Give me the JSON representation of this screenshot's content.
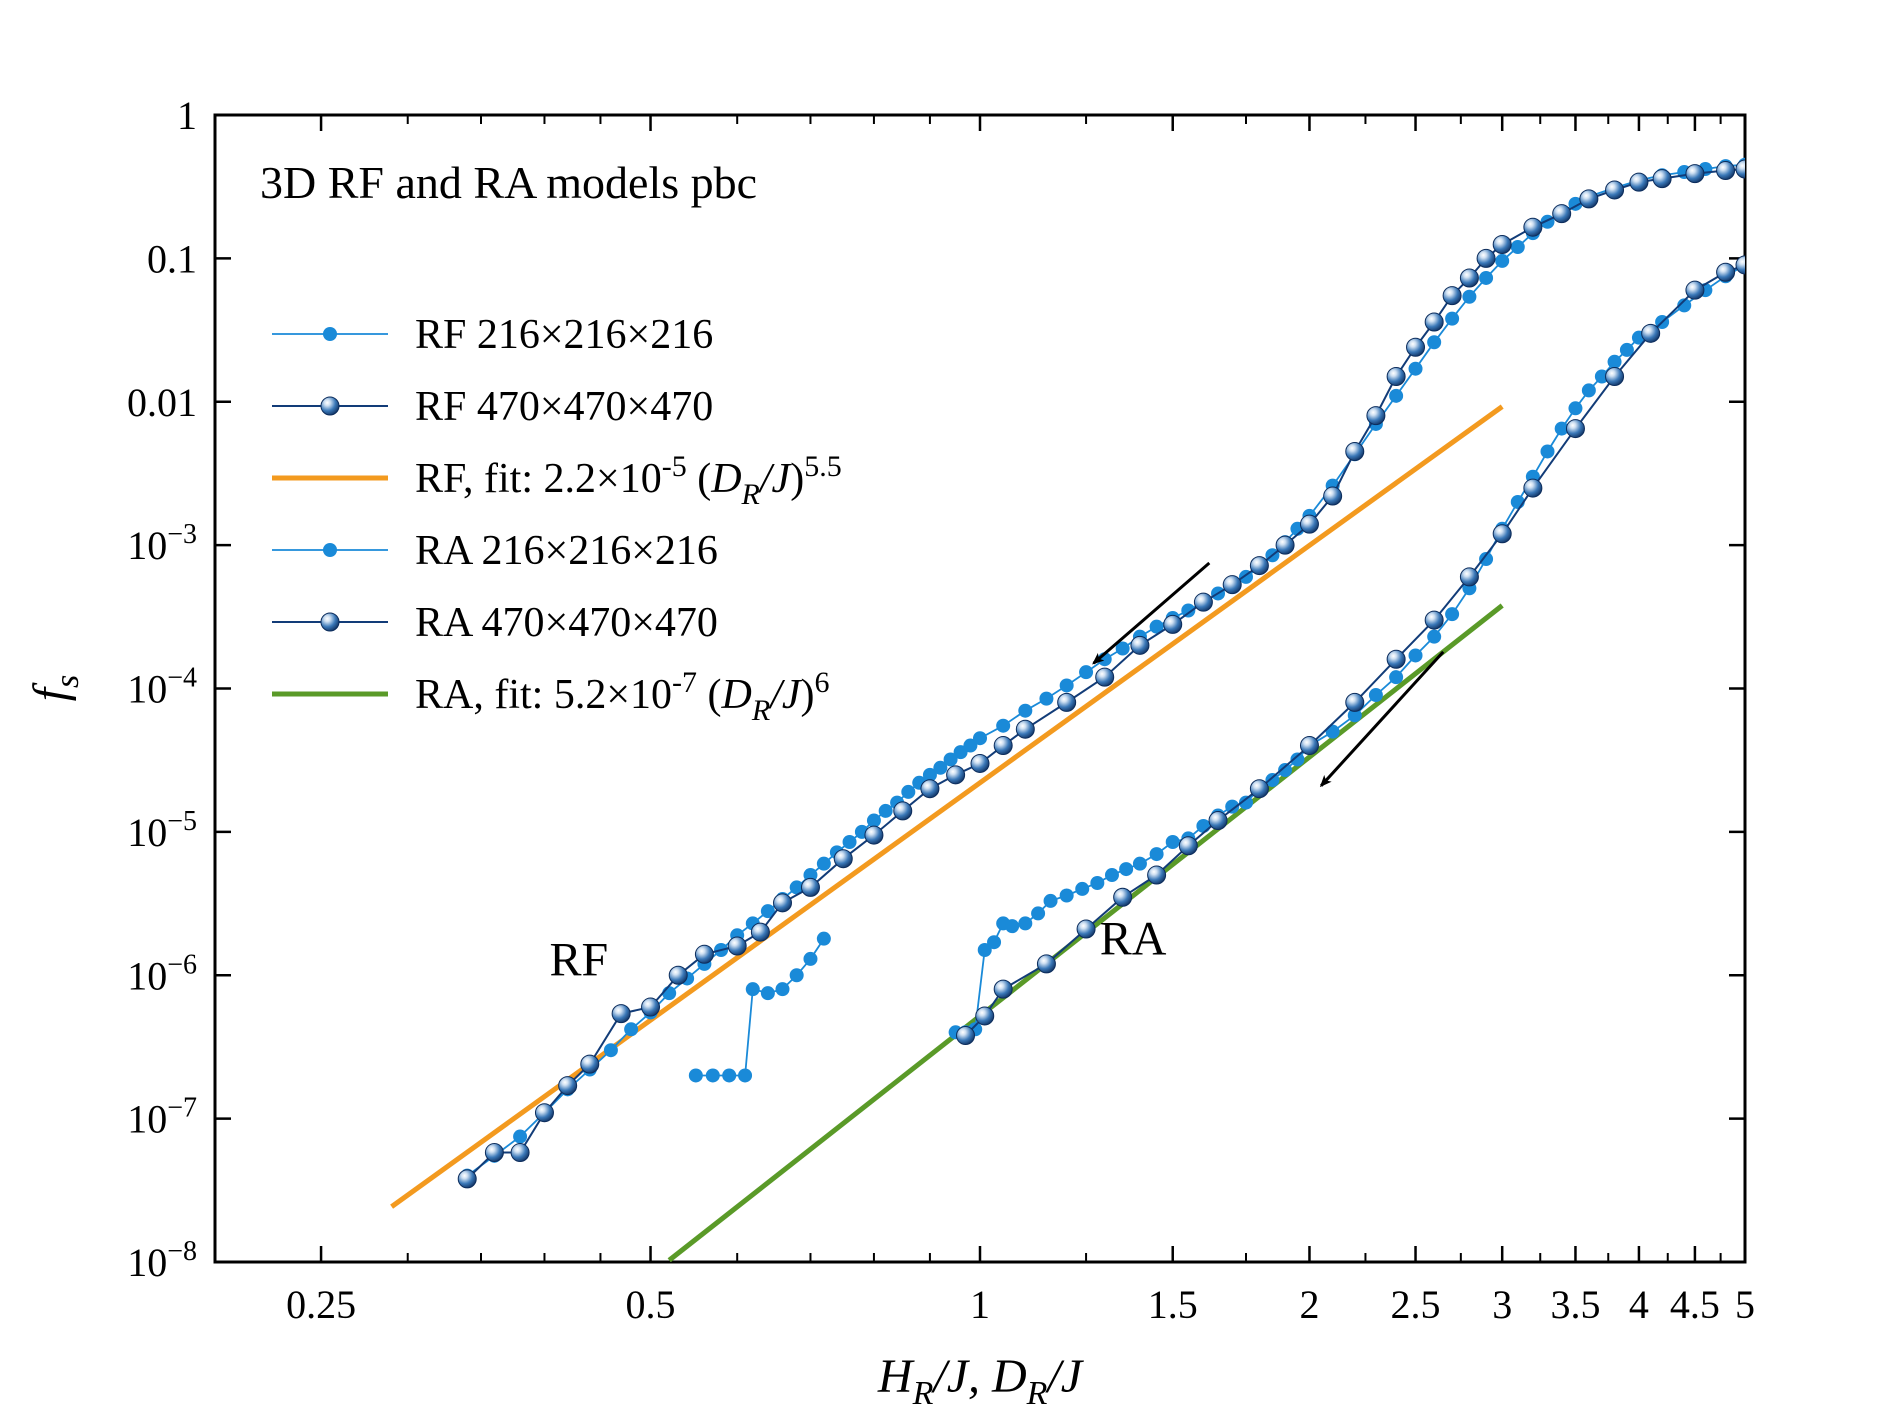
{
  "chart_data": {
    "type": "scatter",
    "title": "3D RF and RA models  pbc",
    "xscale": "log",
    "yscale": "log",
    "xlim": [
      0.2,
      5
    ],
    "ylim": [
      1e-08,
      1
    ],
    "xlabel": {
      "base1": "H",
      "sub1": "R",
      "mid": "/J, ",
      "base2": "D",
      "sub2": "R",
      "end": "/J"
    },
    "ylabel": {
      "base": "f",
      "sub": "s"
    },
    "x_ticks": [
      {
        "value": 0.25,
        "label": "0.25"
      },
      {
        "value": 0.5,
        "label": "0.5"
      },
      {
        "value": 1,
        "label": "1"
      },
      {
        "value": 1.5,
        "label": "1.5"
      },
      {
        "value": 2,
        "label": "2"
      },
      {
        "value": 2.5,
        "label": "2.5"
      },
      {
        "value": 3,
        "label": "3"
      },
      {
        "value": 3.5,
        "label": "3.5"
      },
      {
        "value": 4,
        "label": "4"
      },
      {
        "value": 4.5,
        "label": "4.5"
      },
      {
        "value": 5,
        "label": "5"
      }
    ],
    "y_ticks": [
      {
        "value": 1,
        "base": "1",
        "exp": ""
      },
      {
        "value": 0.1,
        "base": "0.1",
        "exp": ""
      },
      {
        "value": 0.01,
        "base": "0.01",
        "exp": ""
      },
      {
        "value": 0.001,
        "base": "10",
        "exp": "−3"
      },
      {
        "value": 0.0001,
        "base": "10",
        "exp": "−4"
      },
      {
        "value": 1e-05,
        "base": "10",
        "exp": "−5"
      },
      {
        "value": 1e-06,
        "base": "10",
        "exp": "−6"
      },
      {
        "value": 1e-07,
        "base": "10",
        "exp": "−7"
      },
      {
        "value": 1e-08,
        "base": "10",
        "exp": "−8"
      }
    ],
    "legend_position": "upper-left",
    "legend": [
      {
        "key": "rf216",
        "style": "small-dot",
        "color": "#1a8ad8",
        "parts": [
          {
            "t": "RF 216×216×216"
          }
        ]
      },
      {
        "key": "rf470",
        "style": "sphere",
        "color": "#1a5fb0",
        "parts": [
          {
            "t": "RF 470×470×470"
          }
        ]
      },
      {
        "key": "rffit",
        "style": "line",
        "color": "#f39a1f",
        "parts": [
          {
            "t": "RF, fit: 2.2×10"
          },
          {
            "t": "-5",
            "s": "sup"
          },
          {
            "t": " ("
          },
          {
            "t": "D",
            "s": "it"
          },
          {
            "t": "R",
            "s": "itsub"
          },
          {
            "t": "/J",
            "s": "it"
          },
          {
            "t": ")"
          },
          {
            "t": "5.5",
            "s": "sup"
          }
        ]
      },
      {
        "key": "ra216",
        "style": "small-dot",
        "color": "#1a8ad8",
        "parts": [
          {
            "t": "RA 216×216×216"
          }
        ]
      },
      {
        "key": "ra470",
        "style": "sphere",
        "color": "#1a5fb0",
        "parts": [
          {
            "t": "RA 470×470×470"
          }
        ]
      },
      {
        "key": "rafit",
        "style": "line",
        "color": "#5a9a28",
        "parts": [
          {
            "t": "RA, fit: 5.2×10"
          },
          {
            "t": "-7",
            "s": "sup"
          },
          {
            "t": " ("
          },
          {
            "t": "D",
            "s": "it"
          },
          {
            "t": "R",
            "s": "itsub"
          },
          {
            "t": "/J",
            "s": "it"
          },
          {
            "t": ")"
          },
          {
            "t": "6",
            "s": "sup"
          }
        ]
      }
    ],
    "annotations": [
      {
        "text": "RF",
        "x": 0.43,
        "y": 1e-06
      },
      {
        "text": "RA",
        "x": 1.38,
        "y": 1.4e-06
      }
    ],
    "arrows": [
      {
        "from": [
          1.62,
          0.00075
        ],
        "to": [
          1.27,
          0.00015
        ]
      },
      {
        "from": [
          2.65,
          0.00018
        ],
        "to": [
          2.05,
          2.1e-05
        ]
      }
    ],
    "fits": [
      {
        "name": "RF fit",
        "prefactor": 2.2e-05,
        "exponent": 5.5,
        "x_range": [
          0.29,
          3.0
        ],
        "color": "#f39a1f"
      },
      {
        "name": "RA fit",
        "prefactor": 5.2e-07,
        "exponent": 6,
        "x_range": [
          0.52,
          3.0
        ],
        "color": "#5a9a28"
      }
    ],
    "series": [
      {
        "name": "RF 216×216×216",
        "style": "small-dot",
        "color": "#1a8ad8",
        "x": [
          0.34,
          0.36,
          0.38,
          0.4,
          0.42,
          0.44,
          0.46,
          0.48,
          0.5,
          0.52,
          0.54,
          0.56,
          0.58,
          0.6,
          0.62,
          0.64,
          0.66,
          0.68,
          0.7,
          0.72,
          0.74,
          0.76,
          0.78,
          0.8,
          0.82,
          0.84,
          0.86,
          0.88,
          0.9,
          0.92,
          0.94,
          0.96,
          0.98,
          1.0,
          1.05,
          1.1,
          1.15,
          1.2,
          1.25,
          1.3,
          1.35,
          1.4,
          1.45,
          1.5,
          1.55,
          1.6,
          1.65,
          1.7,
          1.75,
          1.8,
          1.85,
          1.9,
          1.95,
          2.0,
          2.1,
          2.2,
          2.3,
          2.4,
          2.5,
          2.6,
          2.7,
          2.8,
          2.9,
          3.0,
          3.1,
          3.2,
          3.3,
          3.4,
          3.5,
          3.6,
          3.8,
          4.0,
          4.2,
          4.4,
          4.6,
          4.8,
          5.0
        ],
        "y": [
          4e-08,
          5.5e-08,
          7.5e-08,
          1.1e-07,
          1.6e-07,
          2.2e-07,
          3e-07,
          4.2e-07,
          5.5e-07,
          7.5e-07,
          9.5e-07,
          1.2e-06,
          1.5e-06,
          1.9e-06,
          2.3e-06,
          2.8e-06,
          3.4e-06,
          4.1e-06,
          5e-06,
          6e-06,
          7.2e-06,
          8.5e-06,
          1e-05,
          1.2e-05,
          1.4e-05,
          1.6e-05,
          1.9e-05,
          2.2e-05,
          2.5e-05,
          2.8e-05,
          3.2e-05,
          3.6e-05,
          4e-05,
          4.5e-05,
          5.5e-05,
          7e-05,
          8.5e-05,
          0.000105,
          0.00013,
          0.00016,
          0.00019,
          0.00023,
          0.00027,
          0.00031,
          0.00035,
          0.0004,
          0.00046,
          0.00052,
          0.0006,
          0.0007,
          0.00085,
          0.00105,
          0.0013,
          0.0016,
          0.0026,
          0.0043,
          0.007,
          0.011,
          0.017,
          0.026,
          0.038,
          0.054,
          0.073,
          0.096,
          0.12,
          0.15,
          0.18,
          0.21,
          0.24,
          0.27,
          0.31,
          0.35,
          0.38,
          0.4,
          0.42,
          0.44,
          0.45
        ]
      },
      {
        "name": "RF 216×216×216 (low branch)",
        "style": "small-dot",
        "color": "#1a8ad8",
        "x": [
          0.55,
          0.57,
          0.59,
          0.61,
          0.62,
          0.64,
          0.66,
          0.68,
          0.7,
          0.72
        ],
        "y": [
          2e-07,
          2e-07,
          2e-07,
          2e-07,
          8e-07,
          7.5e-07,
          8e-07,
          1e-06,
          1.3e-06,
          1.8e-06
        ]
      },
      {
        "name": "RF 470×470×470",
        "style": "sphere",
        "color": "#1a5fb0",
        "x": [
          0.34,
          0.36,
          0.38,
          0.4,
          0.42,
          0.44,
          0.47,
          0.5,
          0.53,
          0.56,
          0.6,
          0.63,
          0.66,
          0.7,
          0.75,
          0.8,
          0.85,
          0.9,
          0.95,
          1.0,
          1.05,
          1.1,
          1.2,
          1.3,
          1.4,
          1.5,
          1.6,
          1.7,
          1.8,
          1.9,
          2.0,
          2.1,
          2.2,
          2.3,
          2.4,
          2.5,
          2.6,
          2.7,
          2.8,
          2.9,
          3.0,
          3.2,
          3.4,
          3.6,
          3.8,
          4.0,
          4.2,
          4.5,
          4.8,
          5.0
        ],
        "y": [
          3.8e-08,
          5.8e-08,
          5.8e-08,
          1.1e-07,
          1.7e-07,
          2.4e-07,
          5.4e-07,
          6e-07,
          1e-06,
          1.4e-06,
          1.6e-06,
          2e-06,
          3.2e-06,
          4.1e-06,
          6.5e-06,
          9.5e-06,
          1.4e-05,
          2e-05,
          2.5e-05,
          3e-05,
          4e-05,
          5.2e-05,
          8e-05,
          0.00012,
          0.0002,
          0.00028,
          0.0004,
          0.00053,
          0.00072,
          0.001,
          0.0014,
          0.0022,
          0.0045,
          0.008,
          0.015,
          0.024,
          0.036,
          0.055,
          0.073,
          0.1,
          0.125,
          0.165,
          0.205,
          0.26,
          0.3,
          0.34,
          0.36,
          0.39,
          0.41,
          0.42
        ]
      },
      {
        "name": "RA 216×216×216",
        "style": "small-dot",
        "color": "#1a8ad8",
        "x": [
          0.95,
          0.97,
          0.99,
          1.01,
          1.03,
          1.05,
          1.07,
          1.1,
          1.13,
          1.16,
          1.2,
          1.24,
          1.28,
          1.32,
          1.36,
          1.4,
          1.45,
          1.5,
          1.55,
          1.6,
          1.65,
          1.7,
          1.75,
          1.8,
          1.85,
          1.9,
          1.95,
          2.0,
          2.1,
          2.2,
          2.3,
          2.4,
          2.5,
          2.6,
          2.7,
          2.8,
          2.9,
          3.0,
          3.1,
          3.2,
          3.3,
          3.4,
          3.5,
          3.6,
          3.7,
          3.8,
          3.9,
          4.0,
          4.2,
          4.4,
          4.6,
          4.8,
          5.0
        ],
        "y": [
          4e-07,
          4e-07,
          4.2e-07,
          1.5e-06,
          1.7e-06,
          2.3e-06,
          2.2e-06,
          2.3e-06,
          2.7e-06,
          3.3e-06,
          3.6e-06,
          4e-06,
          4.4e-06,
          5e-06,
          5.5e-06,
          6e-06,
          7e-06,
          8.5e-06,
          9e-06,
          1.1e-05,
          1.3e-05,
          1.5e-05,
          1.6e-05,
          2e-05,
          2.3e-05,
          2.7e-05,
          3.2e-05,
          4e-05,
          5e-05,
          6.5e-05,
          9e-05,
          0.00012,
          0.00017,
          0.00023,
          0.00033,
          0.0005,
          0.0008,
          0.0013,
          0.002,
          0.003,
          0.0045,
          0.0065,
          0.009,
          0.012,
          0.015,
          0.019,
          0.023,
          0.028,
          0.036,
          0.047,
          0.06,
          0.075,
          0.09
        ]
      },
      {
        "name": "RA 470×470×470",
        "style": "sphere",
        "color": "#1a5fb0",
        "x": [
          0.97,
          1.01,
          1.05,
          1.15,
          1.25,
          1.35,
          1.45,
          1.55,
          1.65,
          1.8,
          2.0,
          2.2,
          2.4,
          2.6,
          2.8,
          3.0,
          3.2,
          3.5,
          3.8,
          4.1,
          4.5,
          4.8,
          5.0
        ],
        "y": [
          3.8e-07,
          5.2e-07,
          8e-07,
          1.2e-06,
          2.1e-06,
          3.5e-06,
          5e-06,
          8e-06,
          1.2e-05,
          2e-05,
          4e-05,
          8e-05,
          0.00016,
          0.0003,
          0.0006,
          0.0012,
          0.0025,
          0.0065,
          0.015,
          0.03,
          0.06,
          0.08,
          0.09
        ]
      }
    ]
  }
}
